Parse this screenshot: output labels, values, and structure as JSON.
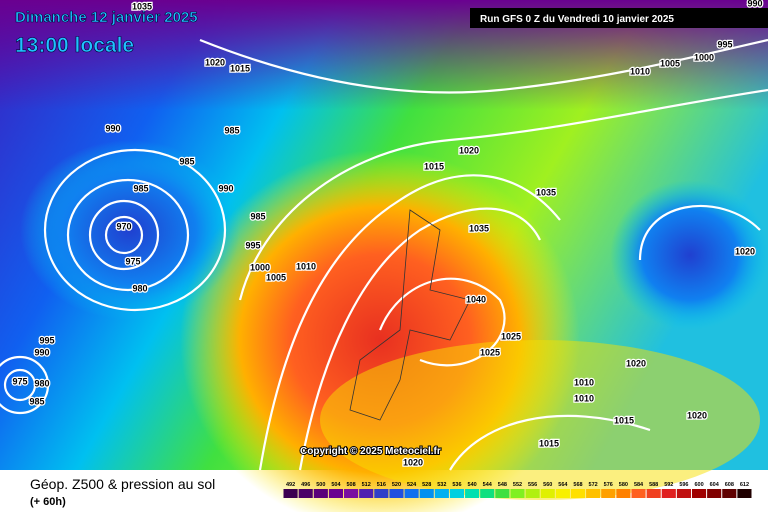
{
  "header": {
    "date": "Dimanche 12 janvier 2025",
    "time": "13:00 locale",
    "run": "Run GFS 0 Z du Vendredi 10 janvier 2025"
  },
  "copyright": "Copyright © 2025 Meteociel.fr",
  "footer": {
    "title": "Géop. Z500 & pression au sol",
    "lead": "(+ 60h)"
  },
  "isobar_labels": [
    "1035",
    "1020",
    "1015",
    "990",
    "985",
    "985",
    "985",
    "990",
    "985",
    "970",
    "995",
    "975",
    "1000",
    "1005",
    "1010",
    "980",
    "1020",
    "1015",
    "1035",
    "1035",
    "1040",
    "1025",
    "1025",
    "1020",
    "1010",
    "1010",
    "1015",
    "1020",
    "1015",
    "1020",
    "1020",
    "995",
    "1005",
    "1000",
    "1010",
    "990",
    "995",
    "990",
    "980",
    "985",
    "975"
  ],
  "legend": {
    "values": [
      492,
      496,
      500,
      504,
      508,
      512,
      516,
      520,
      524,
      528,
      532,
      536,
      540,
      544,
      548,
      552,
      556,
      560,
      564,
      568,
      572,
      576,
      580,
      584,
      588,
      592,
      596,
      600,
      604,
      608,
      612
    ],
    "colors": [
      "#3c0050",
      "#4b0068",
      "#5a007a",
      "#6a0090",
      "#7a10a0",
      "#5020b0",
      "#3040c8",
      "#2050e0",
      "#1070f0",
      "#0090f0",
      "#00b0f0",
      "#00d0e0",
      "#00e0b0",
      "#10e080",
      "#40e040",
      "#80f020",
      "#b0f010",
      "#e0f000",
      "#f8f000",
      "#ffe000",
      "#ffc000",
      "#ffa000",
      "#ff8000",
      "#ff6020",
      "#f04020",
      "#e02020",
      "#c01010",
      "#a00000",
      "#800000",
      "#600000",
      "#200000"
    ]
  }
}
